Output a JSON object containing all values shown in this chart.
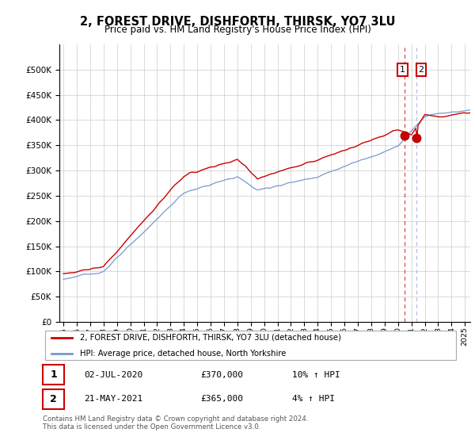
{
  "title": "2, FOREST DRIVE, DISHFORTH, THIRSK, YO7 3LU",
  "subtitle": "Price paid vs. HM Land Registry's House Price Index (HPI)",
  "legend_line1": "2, FOREST DRIVE, DISHFORTH, THIRSK, YO7 3LU (detached house)",
  "legend_line2": "HPI: Average price, detached house, North Yorkshire",
  "annotation1_date": "02-JUL-2020",
  "annotation1_price": "£370,000",
  "annotation1_hpi": "10% ↑ HPI",
  "annotation2_date": "21-MAY-2021",
  "annotation2_price": "£365,000",
  "annotation2_hpi": "4% ↑ HPI",
  "footer": "Contains HM Land Registry data © Crown copyright and database right 2024.\nThis data is licensed under the Open Government Licence v3.0.",
  "red_color": "#cc0000",
  "blue_color": "#7799cc",
  "dot_color": "#cc0000",
  "ylim_min": 0,
  "ylim_max": 550000,
  "yticks": [
    0,
    50000,
    100000,
    150000,
    200000,
    250000,
    300000,
    350000,
    400000,
    450000,
    500000
  ],
  "sale1_x": 2020.5,
  "sale1_y": 370000,
  "sale2_x": 2021.38,
  "sale2_y": 365000,
  "xmin": 1994.7,
  "xmax": 2025.4
}
